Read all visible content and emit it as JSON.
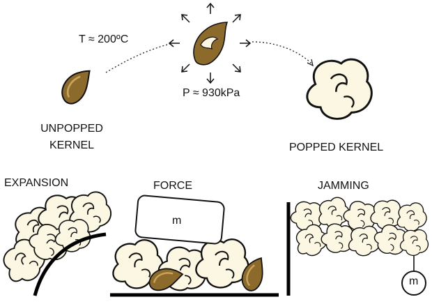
{
  "top": {
    "temperature": "T ≈ 200ºC",
    "pressure": "P ≈ 930kPa",
    "unpopped_line1": "UNPOPPED",
    "unpopped_line2": "KERNEL",
    "popped": "POPPED KERNEL"
  },
  "panels": {
    "expansion": "EXPANSION",
    "force": "FORCE",
    "jamming": "JAMMING"
  },
  "mass_labels": {
    "block": "m",
    "hanging": "m"
  },
  "colors": {
    "kernel": "#8b6a2b",
    "kernel_dark": "#5e4312",
    "popcorn": "#fbf7e3",
    "outline": "#111111"
  }
}
